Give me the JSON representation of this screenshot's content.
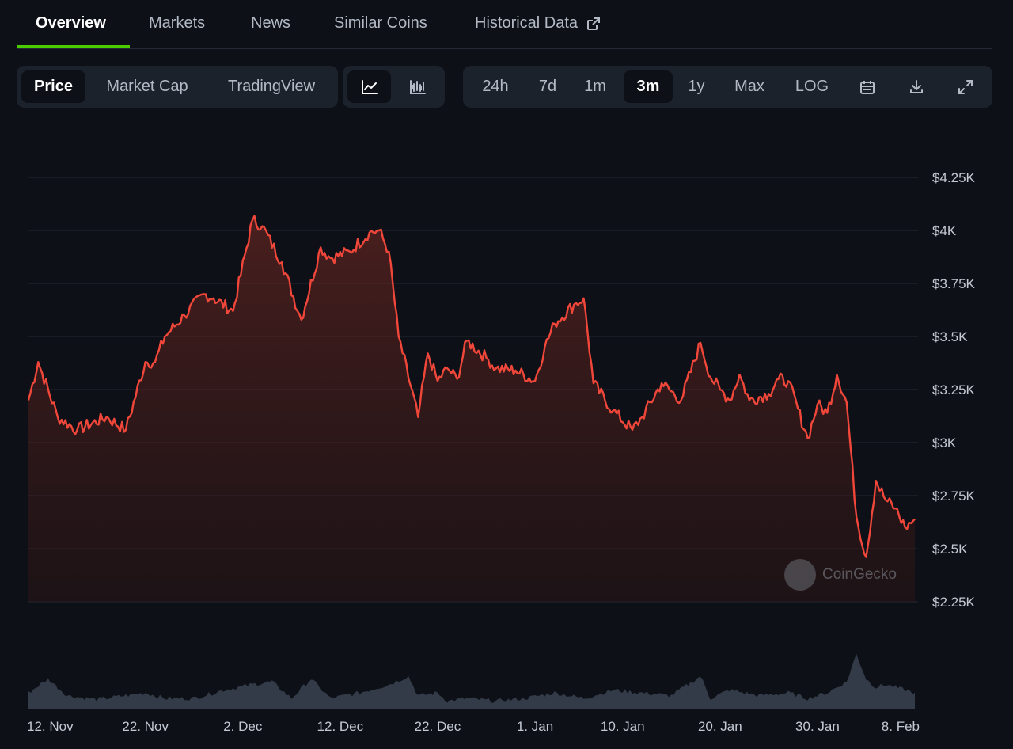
{
  "tabs": [
    {
      "label": "Overview",
      "active": true
    },
    {
      "label": "Markets",
      "active": false
    },
    {
      "label": "News",
      "active": false
    },
    {
      "label": "Similar Coins",
      "active": false
    },
    {
      "label": "Historical Data",
      "active": false
    }
  ],
  "chart_type_group": [
    {
      "label": "Price",
      "active": true
    },
    {
      "label": "Market Cap",
      "active": false
    },
    {
      "label": "TradingView",
      "active": false
    }
  ],
  "style_group": [
    {
      "icon": "line-chart-icon",
      "active": true
    },
    {
      "icon": "candlestick-icon",
      "active": false
    }
  ],
  "range_group": [
    {
      "label": "24h",
      "active": false
    },
    {
      "label": "7d",
      "active": false
    },
    {
      "label": "1m",
      "active": false
    },
    {
      "label": "3m",
      "active": true
    },
    {
      "label": "1y",
      "active": false
    },
    {
      "label": "Max",
      "active": false
    },
    {
      "label": "LOG",
      "active": false
    }
  ],
  "tool_icons": [
    "calendar-icon",
    "download-icon",
    "expand-icon"
  ],
  "watermark": "CoinGecko",
  "colors": {
    "accent": "#4bcc00",
    "price_line": "#f1473a",
    "volume": "#3a4350"
  },
  "chart_data": {
    "type": "area",
    "y_unit": "USD",
    "ylim": [
      2200,
      4300
    ],
    "y_ticks": [
      "$4.25K",
      "$4K",
      "$3.75K",
      "$3.5K",
      "$3.25K",
      "$3K",
      "$2.75K",
      "$2.5K",
      "$2.25K"
    ],
    "y_tick_values": [
      4250,
      4000,
      3750,
      3500,
      3250,
      3000,
      2750,
      2500,
      2250
    ],
    "x_ticks": [
      "12. Nov",
      "22. Nov",
      "2. Dec",
      "12. Dec",
      "22. Dec",
      "1. Jan",
      "10. Jan",
      "20. Jan",
      "30. Jan",
      "8. Feb"
    ],
    "x_tick_days": [
      2,
      12,
      22,
      32,
      42,
      52,
      61,
      71,
      81,
      90
    ],
    "series": [
      {
        "x_days": [
          0,
          1,
          3,
          5,
          8,
          10,
          12,
          13,
          14,
          16,
          18,
          19,
          21,
          23,
          24,
          26,
          28,
          30,
          31,
          33,
          35,
          36,
          37,
          38,
          40,
          41,
          42,
          43,
          44,
          45,
          47,
          48,
          50,
          52,
          53,
          54,
          56,
          57,
          58,
          60,
          62,
          63,
          65,
          67,
          69,
          70,
          71,
          72,
          73,
          74,
          76,
          77,
          78,
          80,
          81,
          82,
          83,
          84,
          85,
          86,
          87,
          88,
          89,
          90,
          91
        ],
        "y": [
          3200,
          3380,
          3120,
          3060,
          3120,
          3060,
          3380,
          3380,
          3500,
          3600,
          3700,
          3680,
          3620,
          4050,
          4020,
          3850,
          3580,
          3920,
          3870,
          3900,
          3990,
          4000,
          3900,
          3500,
          3120,
          3420,
          3290,
          3350,
          3300,
          3480,
          3400,
          3350,
          3340,
          3290,
          3450,
          3560,
          3650,
          3680,
          3280,
          3150,
          3060,
          3120,
          3280,
          3200,
          3470,
          3310,
          3250,
          3200,
          3320,
          3200,
          3230,
          3300,
          3290,
          3020,
          3180,
          3140,
          3320,
          3190,
          2650,
          2460,
          2820,
          2730,
          2690,
          2600,
          2640
        ]
      }
    ],
    "volume": {
      "x_days": [
        0,
        2,
        4,
        7,
        10,
        12,
        14,
        17,
        20,
        23,
        25,
        27,
        29,
        31,
        34,
        37,
        39,
        40,
        42,
        43,
        45,
        48,
        51,
        54,
        57,
        60,
        63,
        66,
        69,
        70,
        72,
        75,
        78,
        80,
        82,
        84,
        85,
        86,
        87,
        88,
        90,
        91
      ],
      "level": [
        0.3,
        0.55,
        0.25,
        0.18,
        0.25,
        0.3,
        0.2,
        0.2,
        0.35,
        0.45,
        0.5,
        0.2,
        0.55,
        0.2,
        0.3,
        0.45,
        0.6,
        0.25,
        0.3,
        0.15,
        0.2,
        0.15,
        0.2,
        0.3,
        0.2,
        0.35,
        0.3,
        0.25,
        0.6,
        0.2,
        0.35,
        0.25,
        0.3,
        0.2,
        0.3,
        0.5,
        1.0,
        0.55,
        0.4,
        0.45,
        0.35,
        0.3
      ]
    }
  }
}
